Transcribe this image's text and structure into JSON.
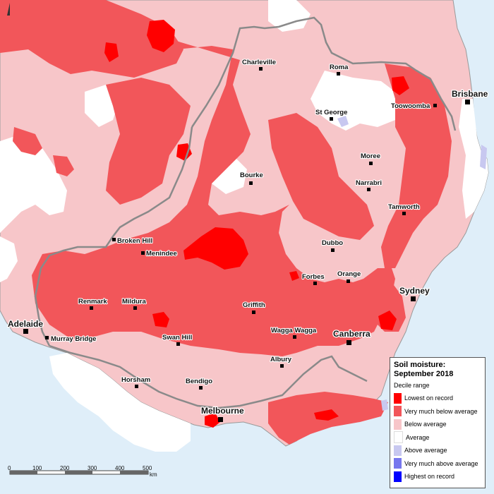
{
  "map": {
    "title_line1": "Soil moisture:",
    "title_line2": "September 2018",
    "legend_subtitle": "Decile range",
    "legend": [
      {
        "label": "Lowest on record",
        "color": "#ff0000"
      },
      {
        "label": "Very much below average",
        "color": "#f2565a"
      },
      {
        "label": "Below average",
        "color": "#f7c6c9"
      },
      {
        "label": "Average",
        "color": "#ffffff"
      },
      {
        "label": "Above average",
        "color": "#c8c8f0"
      },
      {
        "label": "Very much above average",
        "color": "#7777ee"
      },
      {
        "label": "Highest on record",
        "color": "#0000ff"
      }
    ],
    "colors": {
      "ocean": "#dfeef9",
      "border": "#888888"
    },
    "cities": [
      {
        "name": "Charleville"
      },
      {
        "name": "Roma"
      },
      {
        "name": "Brisbane"
      },
      {
        "name": "Toowoomba"
      },
      {
        "name": "St George"
      },
      {
        "name": "Moree"
      },
      {
        "name": "Bourke"
      },
      {
        "name": "Narrabri"
      },
      {
        "name": "Tamworth"
      },
      {
        "name": "Broken Hill"
      },
      {
        "name": "Menindee"
      },
      {
        "name": "Dubbo"
      },
      {
        "name": "Forbes"
      },
      {
        "name": "Orange"
      },
      {
        "name": "Sydney"
      },
      {
        "name": "Renmark"
      },
      {
        "name": "Mildura"
      },
      {
        "name": "Griffith"
      },
      {
        "name": "Adelaide"
      },
      {
        "name": "Wagga Wagga"
      },
      {
        "name": "Canberra"
      },
      {
        "name": "Murray Bridge"
      },
      {
        "name": "Swan Hill"
      },
      {
        "name": "Albury"
      },
      {
        "name": "Horsham"
      },
      {
        "name": "Bendigo"
      },
      {
        "name": "Melbourne"
      }
    ],
    "scale": {
      "ticks": [
        "0",
        "100",
        "200",
        "300",
        "400",
        "500"
      ],
      "unit": "km"
    }
  }
}
